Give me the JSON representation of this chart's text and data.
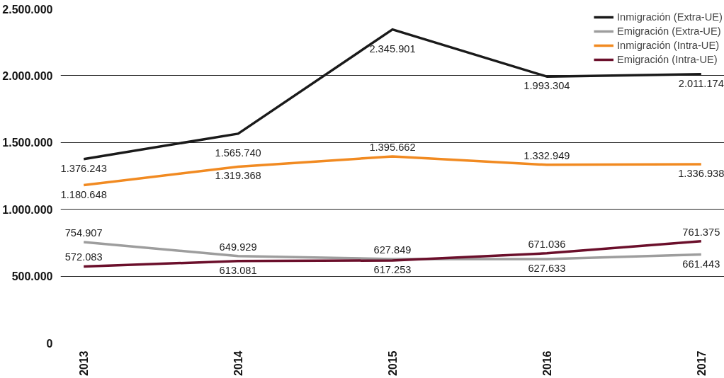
{
  "chart_data": {
    "type": "line",
    "categories": [
      "2013",
      "2014",
      "2015",
      "2016",
      "2017"
    ],
    "series": [
      {
        "name": "Inmigración (Extra-UE)",
        "color": "#1a1a1a",
        "values": [
          1376243,
          1565740,
          2345901,
          1993304,
          2011174
        ],
        "value_labels": [
          "1.376.243",
          "1.565.740",
          "2.345.901",
          "1.993.304",
          "2.011.174"
        ]
      },
      {
        "name": "Emigración (Extra-UE)",
        "color": "#9d9d9d",
        "values": [
          754907,
          649929,
          627849,
          627633,
          661443
        ],
        "value_labels": [
          "754.907",
          "649.929",
          "627.849",
          "627.633",
          "661.443"
        ]
      },
      {
        "name": "Inmigración (Intra-UE)",
        "color": "#f18a21",
        "values": [
          1180648,
          1319368,
          1395662,
          1332949,
          1336938
        ],
        "value_labels": [
          "1.180.648",
          "1.319.368",
          "1.395.662",
          "1.332.949",
          "1.336.938"
        ]
      },
      {
        "name": "Emigración (Intra-UE)",
        "color": "#6b0f2b",
        "values": [
          572083,
          613081,
          617253,
          671036,
          761375
        ],
        "value_labels": [
          "572.083",
          "613.081",
          "617.253",
          "671.036",
          "761.375"
        ]
      }
    ],
    "ylim": [
      0,
      2500000
    ],
    "yticks": [
      {
        "value": 0,
        "label": "0"
      },
      {
        "value": 500000,
        "label": "500.000"
      },
      {
        "value": 1000000,
        "label": "1.000.000"
      },
      {
        "value": 1500000,
        "label": "1.500.000"
      },
      {
        "value": 2000000,
        "label": "2.000.000"
      },
      {
        "value": 2500000,
        "label": "2.500.000"
      }
    ],
    "grid": "y",
    "legend": "top right",
    "marker": "none",
    "line_style": "solid"
  }
}
